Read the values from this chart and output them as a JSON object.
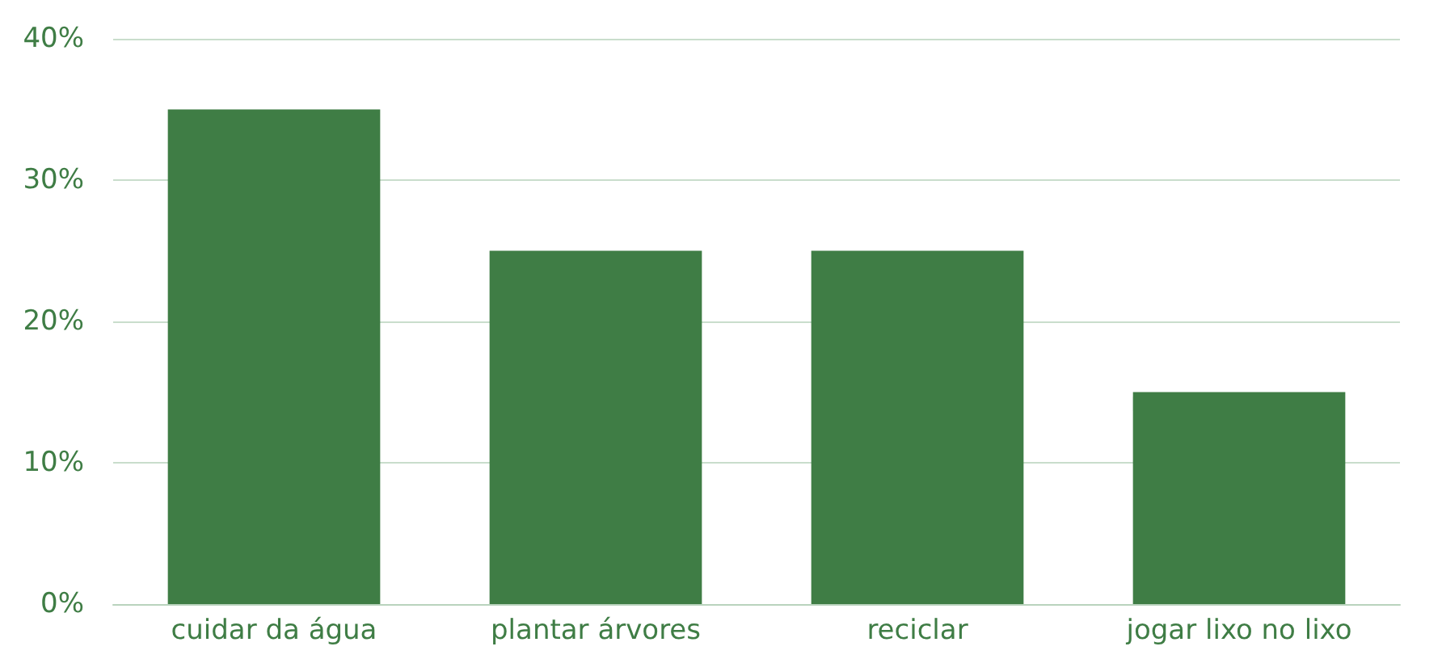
{
  "chart_data": {
    "type": "bar",
    "categories": [
      "cuidar da água",
      "plantar árvores",
      "reciclar",
      "jogar lixo no lixo"
    ],
    "values": [
      35,
      25,
      25,
      15
    ],
    "color": "#3f7d45",
    "ylim": [
      0,
      40
    ],
    "yticks": [
      {
        "value": 0,
        "label": "0%"
      },
      {
        "value": 10,
        "label": "10%"
      },
      {
        "value": 20,
        "label": "20%"
      },
      {
        "value": 30,
        "label": "30%"
      },
      {
        "value": 40,
        "label": "40%"
      }
    ],
    "grid": "y"
  }
}
